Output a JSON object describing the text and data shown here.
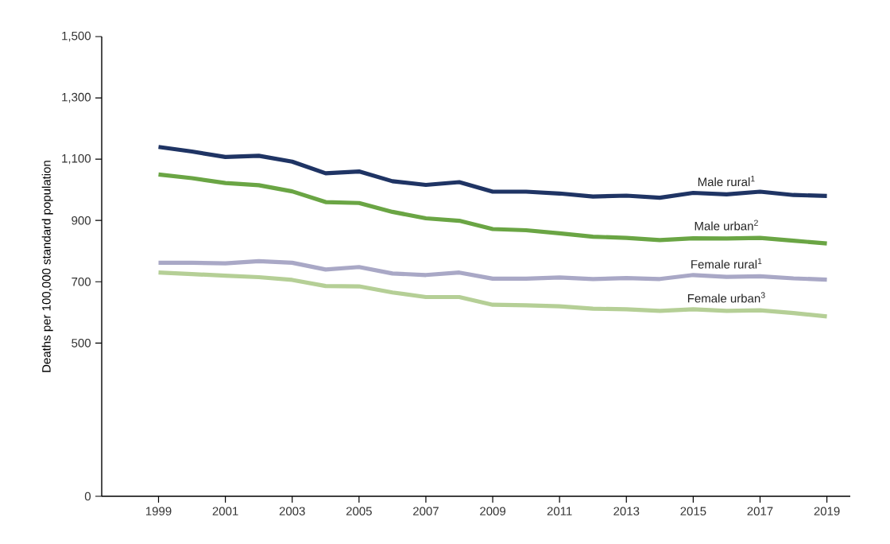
{
  "chart_data": {
    "type": "line",
    "ylabel": "Deaths per 100,000 standard population",
    "x": [
      1999,
      2000,
      2001,
      2002,
      2003,
      2004,
      2005,
      2006,
      2007,
      2008,
      2009,
      2010,
      2011,
      2012,
      2013,
      2014,
      2015,
      2016,
      2017,
      2018,
      2019
    ],
    "series": [
      {
        "name": "Male rural$^{1}$",
        "color": "#1f3464",
        "values": [
          1140,
          1125,
          1107,
          1111,
          1092,
          1054,
          1060,
          1028,
          1016,
          1025,
          994,
          994,
          988,
          978,
          981,
          974,
          990,
          985,
          994,
          983,
          980
        ]
      },
      {
        "name": "Male urban$^{2}$",
        "color": "#6aa544",
        "values": [
          1050,
          1038,
          1022,
          1015,
          995,
          960,
          957,
          928,
          907,
          899,
          872,
          868,
          858,
          847,
          843,
          836,
          842,
          841,
          843,
          834,
          825
        ]
      },
      {
        "name": "Female rural$^{1}$",
        "color": "#a9a8c6",
        "values": [
          762,
          762,
          760,
          767,
          762,
          740,
          748,
          727,
          722,
          730,
          710,
          710,
          714,
          709,
          712,
          709,
          722,
          716,
          718,
          711,
          707
        ]
      },
      {
        "name": "Female urban$^{3}$",
        "color": "#b5cf96",
        "values": [
          730,
          725,
          720,
          715,
          706,
          686,
          685,
          665,
          650,
          650,
          625,
          623,
          620,
          612,
          610,
          605,
          610,
          605,
          607,
          598,
          587
        ]
      }
    ],
    "xlim": [
      1997.3,
      2019.7
    ],
    "ylim": [
      0,
      1500
    ],
    "xticks": [
      1999,
      2001,
      2003,
      2005,
      2007,
      2009,
      2011,
      2013,
      2015,
      2017,
      2019
    ],
    "yticks": [
      0,
      500,
      700,
      900,
      {
        "value": 1100,
        "label": "1,100"
      },
      {
        "value": 1300,
        "label": "1,300"
      },
      {
        "value": 1500,
        "label": "1,500"
      }
    ],
    "grid": false,
    "legend": false,
    "marker": "none",
    "line_style": "solid"
  }
}
